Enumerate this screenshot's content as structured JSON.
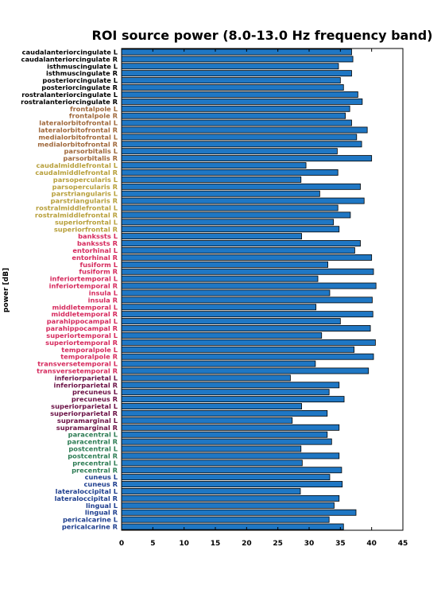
{
  "chart_data": {
    "type": "bar",
    "orientation": "horizontal",
    "title": "ROI source power (8.0-13.0 Hz frequency band)",
    "ylabel": "power [dB]",
    "xlabel": "",
    "xlim": [
      0,
      45
    ],
    "xticks": [
      "0",
      "5",
      "10",
      "15",
      "20",
      "25",
      "30",
      "35",
      "40",
      "45"
    ],
    "bar_color": "#1f77c4",
    "grid": false,
    "groups": [
      {
        "color": "#000000",
        "labels": [
          "caudalanteriorcingulate L",
          "caudalanteriorcingulate R",
          "isthmuscingulate L",
          "isthmuscingulate R",
          "posteriorcingulate L",
          "posteriorcingulate R",
          "rostralanteriorcingulate L",
          "rostralanteriorcingulate R"
        ],
        "values": [
          36.8,
          37.0,
          34.7,
          36.8,
          35.0,
          35.5,
          37.8,
          38.5
        ]
      },
      {
        "color": "#a0693c",
        "labels": [
          "frontalpole L",
          "frontalpole R",
          "lateralorbitofrontal L",
          "lateralorbitofrontal R",
          "medialorbitofrontal L",
          "medialorbitofrontal R",
          "parsorbitalis L",
          "parsorbitalis R"
        ],
        "values": [
          36.5,
          35.8,
          36.8,
          39.3,
          37.6,
          38.4,
          34.5,
          40.0
        ]
      },
      {
        "color": "#b8a03c",
        "labels": [
          "caudalmiddlefrontal L",
          "caudalmiddlefrontal R",
          "parsopercularis L",
          "parsopercularis R",
          "parstriangularis L",
          "parstriangularis R",
          "rostralmiddlefrontal L",
          "rostralmiddlefrontal R",
          "superiorfrontal L",
          "superiorfrontal R"
        ],
        "values": [
          29.5,
          34.6,
          28.7,
          38.2,
          31.7,
          38.8,
          34.6,
          36.6,
          33.9,
          34.8
        ]
      },
      {
        "color": "#d62b5e",
        "labels": [
          "bankssts L",
          "bankssts R",
          "entorhinal L",
          "entorhinal R",
          "fusiform L",
          "fusiform R",
          "inferiortemporal L",
          "inferiortemporal R",
          "insula L",
          "insula R",
          "middletemporal L",
          "middletemporal R",
          "parahippocampal L",
          "parahippocampal R",
          "superiortemporal L",
          "superiortemporal R",
          "temporalpole L",
          "temporalpole R",
          "transversetemporal L",
          "transversetemporal R"
        ],
        "values": [
          28.8,
          38.2,
          37.3,
          40.0,
          33.0,
          40.3,
          31.4,
          40.7,
          33.3,
          40.1,
          31.1,
          40.2,
          35.0,
          39.8,
          32.0,
          40.6,
          37.2,
          40.3,
          31.0,
          39.5
        ]
      },
      {
        "color": "#6b1246",
        "labels": [
          "inferiorparietal L",
          "inferiorparietal R",
          "precuneus L",
          "precuneus R",
          "superiorparietal L",
          "superiorparietal R",
          "supramarginal L",
          "supramarginal R"
        ],
        "values": [
          27.0,
          34.8,
          33.2,
          35.6,
          28.8,
          32.9,
          27.3,
          34.8
        ]
      },
      {
        "color": "#2e7d55",
        "labels": [
          "paracentral L",
          "paracentral R",
          "postcentral L",
          "postcentral R",
          "precentral L",
          "precentral R"
        ],
        "values": [
          32.9,
          33.6,
          28.7,
          34.8,
          28.9,
          35.2
        ]
      },
      {
        "color": "#1f3f8f",
        "labels": [
          "cuneus L",
          "cuneus R",
          "lateraloccipital L",
          "lateraloccipital R",
          "lingual L",
          "lingual R",
          "pericalcarine L",
          "pericalcarine R"
        ],
        "values": [
          33.3,
          35.3,
          28.6,
          34.8,
          34.0,
          37.5,
          33.2,
          35.5
        ]
      }
    ]
  }
}
